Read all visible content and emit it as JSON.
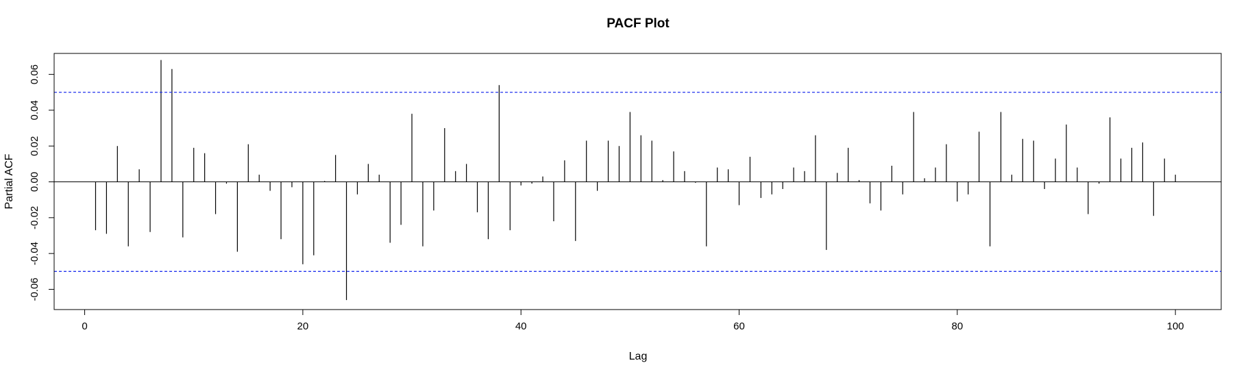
{
  "chart_data": {
    "type": "bar",
    "title": "PACF Plot",
    "xlabel": "Lag",
    "ylabel": "Partial ACF",
    "xlim": [
      -2.8,
      104.2
    ],
    "ylim": [
      -0.0713,
      0.0717
    ],
    "x_ticks": [
      0,
      20,
      40,
      60,
      80,
      100
    ],
    "x_tick_labels": [
      "0",
      "20",
      "40",
      "60",
      "80",
      "100"
    ],
    "y_ticks": [
      -0.06,
      -0.04,
      -0.02,
      0.0,
      0.02,
      0.04,
      0.06
    ],
    "y_tick_labels": [
      "-0.06",
      "-0.04",
      "-0.02",
      "0.00",
      "0.02",
      "0.04",
      "0.06"
    ],
    "confidence_band": 0.05,
    "colors": {
      "bars": "#000000",
      "confidence": "#2233ee",
      "zero_line": "#000000"
    },
    "grid": false,
    "lags": [
      1,
      2,
      3,
      4,
      5,
      6,
      7,
      8,
      9,
      10,
      11,
      12,
      13,
      14,
      15,
      16,
      17,
      18,
      19,
      20,
      21,
      22,
      23,
      24,
      25,
      26,
      27,
      28,
      29,
      30,
      31,
      32,
      33,
      34,
      35,
      36,
      37,
      38,
      39,
      40,
      41,
      42,
      43,
      44,
      45,
      46,
      47,
      48,
      49,
      50,
      51,
      52,
      53,
      54,
      55,
      56,
      57,
      58,
      59,
      60,
      61,
      62,
      63,
      64,
      65,
      66,
      67,
      68,
      69,
      70,
      71,
      72,
      73,
      74,
      75,
      76,
      77,
      78,
      79,
      80,
      81,
      82,
      83,
      84,
      85,
      86,
      87,
      88,
      89,
      90,
      91,
      92,
      93,
      94,
      95,
      96,
      97,
      98,
      99,
      100
    ],
    "values": [
      -0.027,
      -0.029,
      0.02,
      -0.036,
      0.007,
      -0.028,
      0.068,
      0.063,
      -0.031,
      0.019,
      0.016,
      -0.018,
      -0.001,
      -0.039,
      0.021,
      0.004,
      -0.005,
      -0.032,
      -0.003,
      -0.046,
      -0.041,
      0.0005,
      0.015,
      -0.066,
      -0.007,
      0.01,
      0.004,
      -0.034,
      -0.024,
      0.038,
      -0.036,
      -0.016,
      0.03,
      0.006,
      0.01,
      -0.017,
      -0.032,
      0.054,
      -0.027,
      -0.002,
      -0.001,
      0.003,
      -0.022,
      0.012,
      -0.033,
      0.023,
      -0.005,
      0.023,
      0.02,
      0.039,
      0.026,
      0.023,
      0.001,
      0.017,
      0.006,
      -0.0005,
      -0.036,
      0.008,
      0.007,
      -0.013,
      0.014,
      -0.009,
      -0.007,
      -0.004,
      0.008,
      0.006,
      0.026,
      -0.038,
      0.005,
      0.019,
      0.001,
      -0.012,
      -0.016,
      0.009,
      -0.007,
      0.039,
      0.002,
      0.008,
      0.021,
      -0.011,
      -0.007,
      0.028,
      -0.036,
      0.039,
      0.004,
      0.024,
      0.023,
      -0.004,
      0.013,
      0.032,
      0.008,
      -0.018,
      -0.001,
      0.036,
      0.013,
      0.019,
      0.022,
      -0.019,
      0.013,
      0.004
    ]
  }
}
